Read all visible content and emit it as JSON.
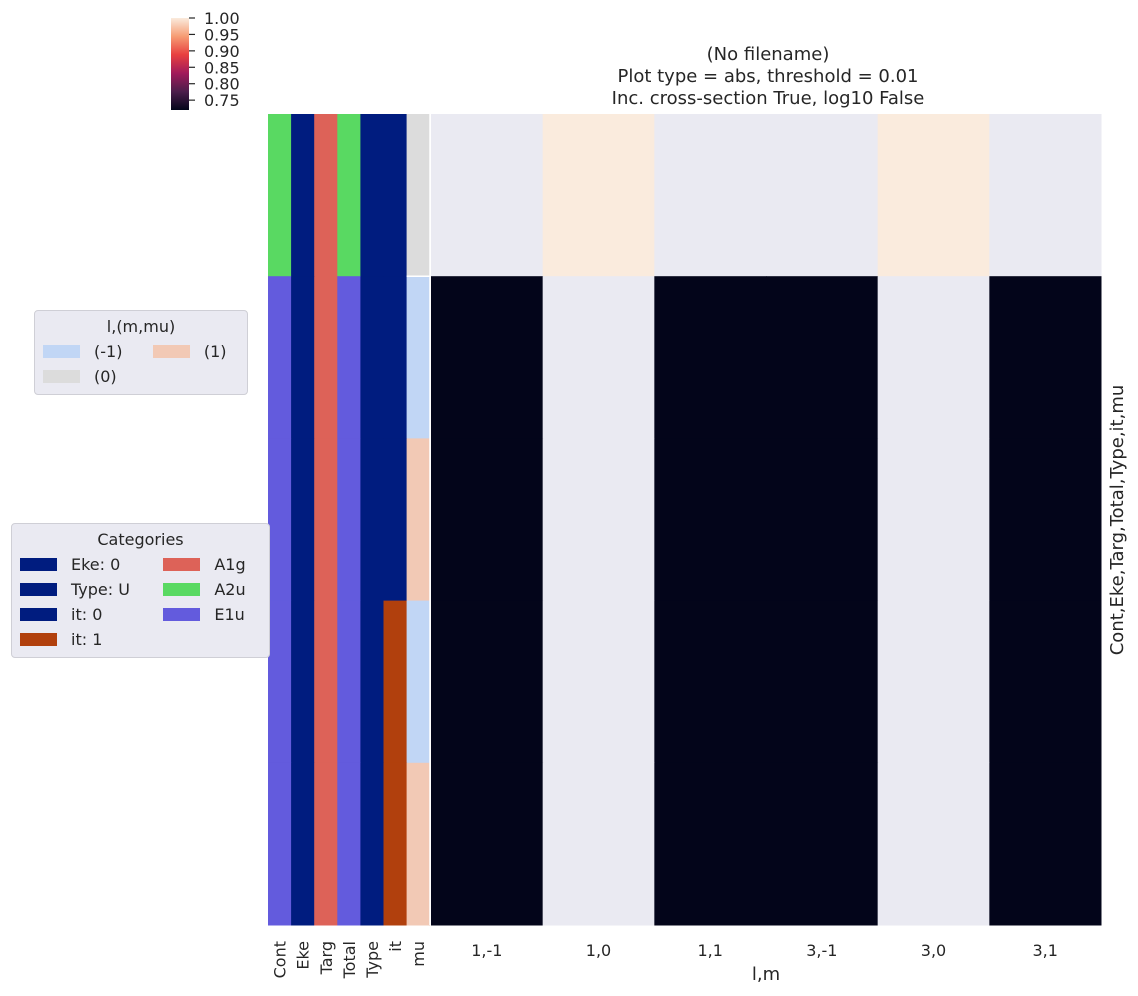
{
  "title_lines": [
    "(No filename)",
    "Plot type = abs, threshold = 0.01",
    "Inc. cross-section True, log10 False"
  ],
  "chart_data": {
    "type": "heatmap",
    "xlabel": "l,m",
    "ylabel": "Cont,Eke,Targ,Total,Type,it,mu",
    "x_categories": [
      "1,-1",
      "1,0",
      "1,1",
      "3,-1",
      "3,0",
      "3,1"
    ],
    "row_annotation_labels": [
      "Cont",
      "Eke",
      "Targ",
      "Total",
      "Type",
      "it",
      "mu"
    ],
    "rows": [
      {
        "Cont": "A2u",
        "Eke": "0",
        "Targ": "A1g",
        "Total": "A2u",
        "Type": "U",
        "it": "0",
        "mu": "0",
        "values": [
          null,
          1.0,
          null,
          null,
          1.0,
          null
        ]
      },
      {
        "Cont": "E1u",
        "Eke": "0",
        "Targ": "A1g",
        "Total": "E1u",
        "Type": "U",
        "it": "0",
        "mu": "-1",
        "values": [
          0.71,
          null,
          0.71,
          0.71,
          null,
          0.71
        ]
      },
      {
        "Cont": "E1u",
        "Eke": "0",
        "Targ": "A1g",
        "Total": "E1u",
        "Type": "U",
        "it": "0",
        "mu": "1",
        "values": [
          0.71,
          null,
          0.71,
          0.71,
          null,
          0.71
        ]
      },
      {
        "Cont": "E1u",
        "Eke": "0",
        "Targ": "A1g",
        "Total": "E1u",
        "Type": "U",
        "it": "1",
        "mu": "-1",
        "values": [
          0.71,
          null,
          0.71,
          0.71,
          null,
          0.71
        ]
      },
      {
        "Cont": "E1u",
        "Eke": "0",
        "Targ": "A1g",
        "Total": "E1u",
        "Type": "U",
        "it": "1",
        "mu": "1",
        "values": [
          0.71,
          null,
          0.71,
          0.71,
          null,
          0.71
        ]
      }
    ],
    "colorbar": {
      "min": 0.72,
      "max": 1.0,
      "ticks": [
        "1.00",
        "0.95",
        "0.90",
        "0.85",
        "0.80",
        "0.75"
      ],
      "colormap": "rocket"
    },
    "nan_color": "#eaeaf2",
    "category_colors": {
      "Eke: 0": "#001c7f",
      "Type: U": "#001c7f",
      "it: 0": "#001c7f",
      "it: 1": "#b1400d",
      "A1g": "#dd6258",
      "A2u": "#59d962",
      "E1u": "#635bdd"
    },
    "mu_colors": {
      "-1": "#c1d6f5",
      "0": "#dcdcdc",
      "1": "#f2c9b5"
    }
  },
  "legend_lm": {
    "title": "l,(m,mu)",
    "items": [
      {
        "label": "(-1)",
        "color": "#c1d6f5"
      },
      {
        "label": "(1)",
        "color": "#f2c9b5"
      },
      {
        "label": "(0)",
        "color": "#dcdcdc"
      }
    ]
  },
  "legend_categories": {
    "title": "Categories",
    "items": [
      {
        "label": "Eke: 0",
        "color": "#001c7f"
      },
      {
        "label": "A1g",
        "color": "#dd6258"
      },
      {
        "label": "Type: U",
        "color": "#001c7f"
      },
      {
        "label": "A2u",
        "color": "#59d962"
      },
      {
        "label": "it: 0",
        "color": "#001c7f"
      },
      {
        "label": "E1u",
        "color": "#635bdd"
      },
      {
        "label": "it: 1",
        "color": "#b1400d"
      }
    ]
  }
}
